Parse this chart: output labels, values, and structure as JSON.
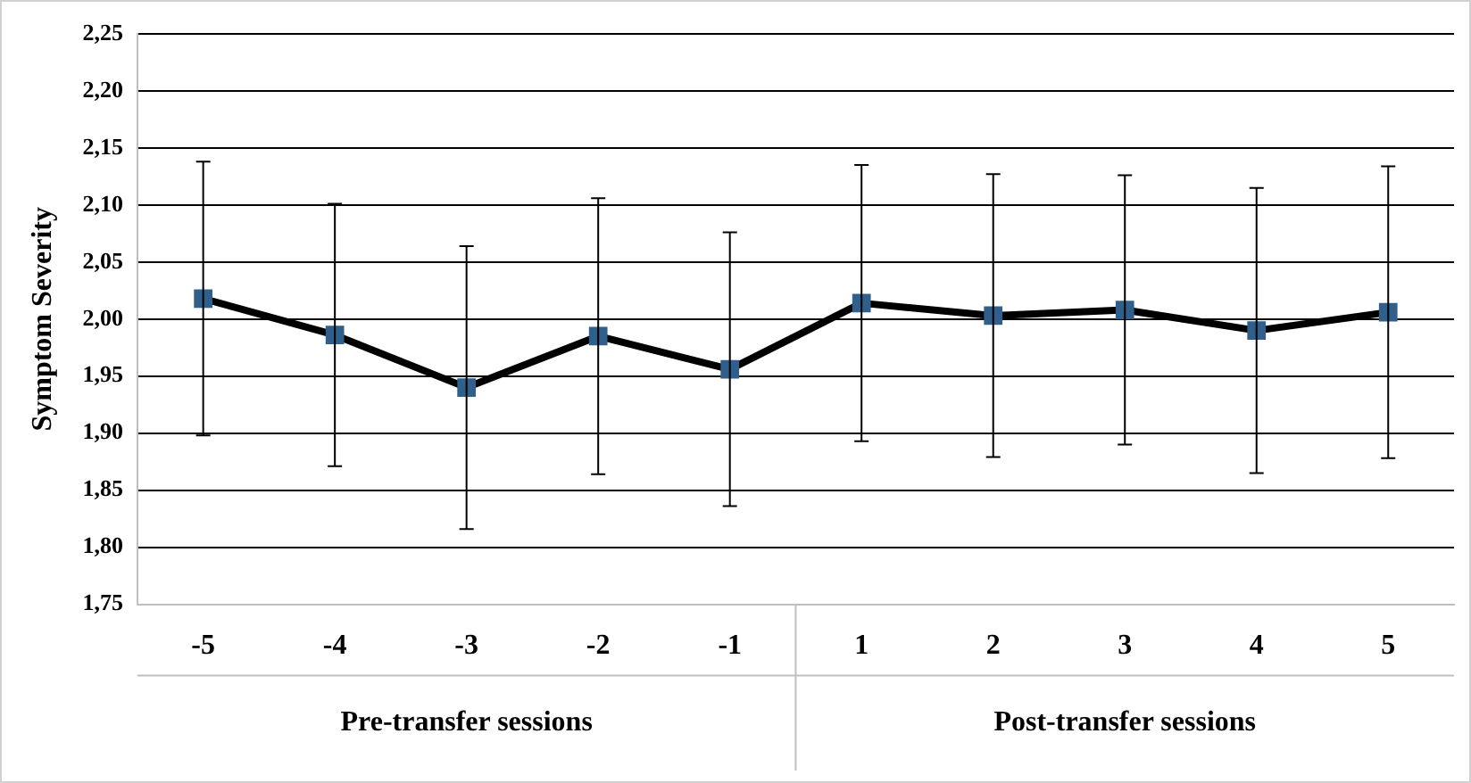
{
  "chart_data": {
    "type": "line",
    "ylabel": "Symptom Severity",
    "categories": [
      "-5",
      "-4",
      "-3",
      "-2",
      "-1",
      "1",
      "2",
      "3",
      "4",
      "5"
    ],
    "series": [
      {
        "color": "#000000",
        "values": [
          2.018,
          1.986,
          1.94,
          1.985,
          1.956,
          2.014,
          2.003,
          2.008,
          1.99,
          2.006
        ],
        "errors": [
          0.12,
          0.115,
          0.124,
          0.121,
          0.12,
          0.121,
          0.124,
          0.118,
          0.125,
          0.128
        ]
      }
    ],
    "ylim": [
      1.75,
      2.25
    ],
    "yticks": [
      {
        "value": 1.75,
        "label": "1,75"
      },
      {
        "value": 1.8,
        "label": "1,80"
      },
      {
        "value": 1.85,
        "label": "1,85"
      },
      {
        "value": 1.9,
        "label": "1,90"
      },
      {
        "value": 1.95,
        "label": "1,95"
      },
      {
        "value": 2.0,
        "label": "2,00"
      },
      {
        "value": 2.05,
        "label": "2,05"
      },
      {
        "value": 2.1,
        "label": "2,10"
      },
      {
        "value": 2.15,
        "label": "2,15"
      },
      {
        "value": 2.2,
        "label": "2,20"
      },
      {
        "value": 2.25,
        "label": "2,25"
      }
    ],
    "annotations": [
      "Pre-transfer sessions",
      "Post-transfer sessions"
    ],
    "grid": "y",
    "legend": false,
    "marker": "square",
    "line_style": "solid"
  }
}
